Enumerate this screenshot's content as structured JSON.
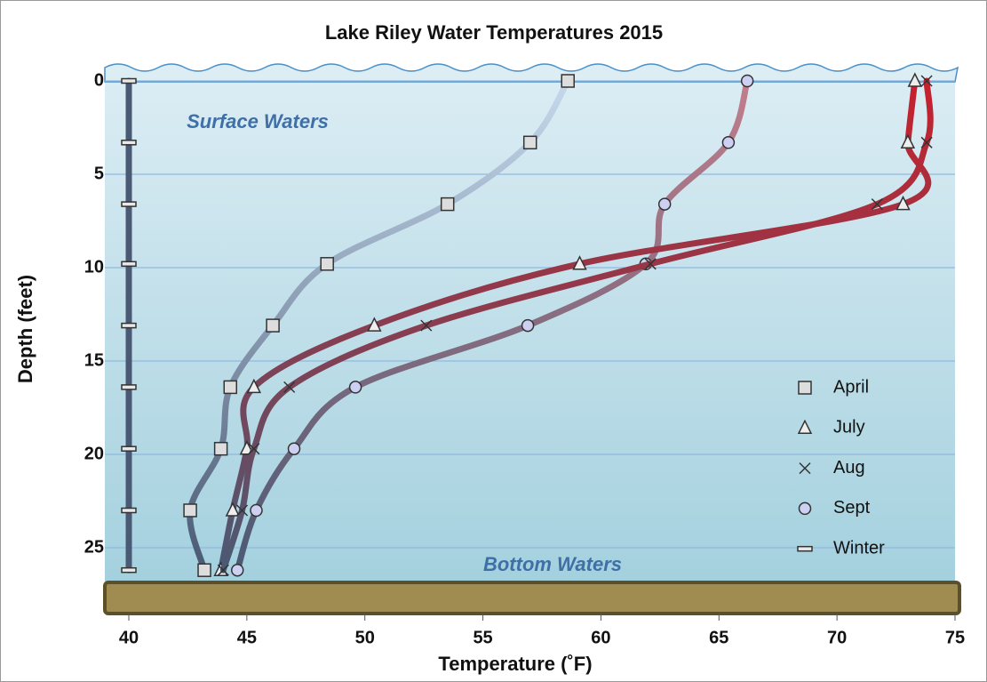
{
  "chart_data": {
    "type": "line",
    "title": "Lake Riley Water Temperatures 2015",
    "x_label": "Temperature  (˚F)",
    "y_label": "Depth (feet)",
    "annotations": [
      "Surface Waters",
      "Bottom Waters"
    ],
    "y": [
      0,
      3.3,
      6.6,
      9.8,
      13.1,
      16.4,
      19.7,
      23.0,
      26.2
    ],
    "series": [
      {
        "name": "April",
        "marker": "square",
        "colors": [
          "#c6d9ec",
          "#4a5a74"
        ],
        "values": [
          58.6,
          57.0,
          53.5,
          48.4,
          46.1,
          44.3,
          43.9,
          42.6,
          43.2
        ]
      },
      {
        "name": "July",
        "marker": "triangle",
        "colors": [
          "#c8202c",
          "#4a5a74"
        ],
        "values": [
          73.3,
          73.0,
          72.8,
          59.1,
          50.4,
          45.3,
          45.0,
          44.4,
          43.9
        ]
      },
      {
        "name": "Aug",
        "marker": "x",
        "colors": [
          "#c8202c",
          "#4a5a74"
        ],
        "values": [
          73.8,
          73.8,
          71.7,
          62.1,
          52.6,
          46.8,
          45.3,
          44.8,
          44.0
        ]
      },
      {
        "name": "Sept",
        "marker": "circle",
        "colors": [
          "#c27e8c",
          "#4a5a74"
        ],
        "values": [
          66.2,
          65.4,
          62.7,
          61.9,
          56.9,
          49.6,
          47.0,
          45.4,
          44.6
        ]
      },
      {
        "name": "Winter",
        "marker": "dash",
        "colors": [
          "#4a5a74",
          "#4a5a74"
        ],
        "values": [
          40,
          40,
          40,
          40,
          40,
          40,
          40,
          40,
          40
        ]
      }
    ],
    "xlim": [
      40,
      75
    ],
    "xticks": [
      40,
      45,
      50,
      55,
      60,
      65,
      70,
      75
    ],
    "ylim": [
      -1,
      28
    ],
    "yticks": [
      0,
      5,
      10,
      15,
      20,
      25
    ],
    "y_inverted": true,
    "grid": true,
    "legend": "right"
  }
}
